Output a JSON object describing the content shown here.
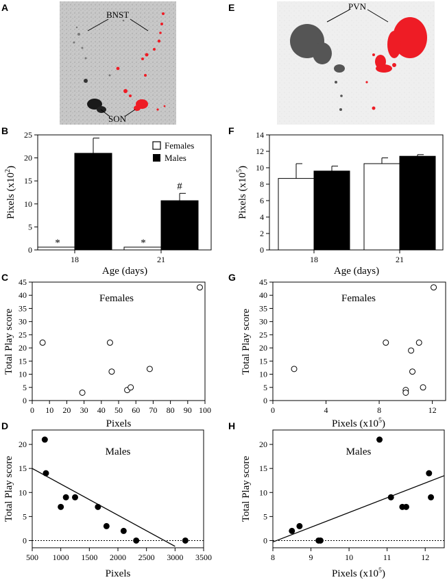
{
  "colors": {
    "highlight": "#ee1c25",
    "stain": "#555555",
    "background_panel": "#c4c4c4"
  },
  "panel_labels": [
    "A",
    "B",
    "C",
    "D",
    "E",
    "F",
    "G",
    "H"
  ],
  "images": [
    {
      "panel": "A",
      "labels": [
        "BNST",
        "SON"
      ]
    },
    {
      "panel": "E",
      "labels": [
        "PVN"
      ]
    }
  ],
  "chart_data": [
    {
      "panel": "B",
      "type": "bar",
      "categories": [
        "18",
        "21"
      ],
      "series": [
        {
          "name": "Females",
          "values": [
            0.6,
            0.6
          ],
          "errors": [
            0,
            0
          ]
        },
        {
          "name": "Males",
          "values": [
            21,
            10.7
          ],
          "errors": [
            3.3,
            1.6
          ]
        }
      ],
      "xlabel": "Age (days)",
      "ylabel": "Pixels (x10",
      "ylabel_sup": "2",
      "ylabel_end": ")",
      "ylim": [
        0,
        25
      ],
      "yticks": [
        "0",
        "5",
        "10",
        "15",
        "20",
        "25"
      ],
      "annotations": [
        "*",
        "*",
        "#"
      ],
      "legend": "top-right"
    },
    {
      "panel": "F",
      "type": "bar",
      "categories": [
        "18",
        "21"
      ],
      "series": [
        {
          "name": "Females",
          "values": [
            8.7,
            10.5
          ],
          "errors": [
            1.8,
            0.7
          ]
        },
        {
          "name": "Males",
          "values": [
            9.6,
            11.4
          ],
          "errors": [
            0.6,
            0.2
          ]
        }
      ],
      "xlabel": "Age (days)",
      "ylabel": "Pixels (x10",
      "ylabel_sup": "5",
      "ylabel_end": ")",
      "ylim": [
        0,
        14
      ],
      "yticks": [
        "0",
        "2",
        "4",
        "6",
        "8",
        "10",
        "12",
        "14"
      ]
    },
    {
      "panel": "C",
      "type": "scatter",
      "title": "Females",
      "marker": "open",
      "x": [
        6,
        29,
        45,
        46,
        55,
        57,
        68,
        97
      ],
      "y": [
        22,
        3,
        22,
        11,
        4,
        5,
        12,
        43
      ],
      "xlabel": "Pixels",
      "ylabel": "Total Play score",
      "xlim": [
        0,
        100
      ],
      "ylim": [
        0,
        45
      ],
      "xticks": [
        "0",
        "10",
        "20",
        "30",
        "40",
        "50",
        "60",
        "70",
        "80",
        "90",
        "100"
      ],
      "yticks": [
        "0",
        "5",
        "10",
        "15",
        "20",
        "25",
        "30",
        "35",
        "40",
        "45"
      ]
    },
    {
      "panel": "G",
      "type": "scatter",
      "title": "Females",
      "marker": "open",
      "x": [
        1.6,
        8.5,
        10,
        10,
        10.4,
        10.5,
        11,
        11.3,
        12.1
      ],
      "y": [
        12,
        22,
        4,
        3,
        19,
        11,
        22,
        5,
        43
      ],
      "xlabel": "Pixels (x10",
      "xlabel_sup": "5",
      "xlabel_end": ")",
      "ylabel": "Total Play score",
      "xlim": [
        0,
        13
      ],
      "ylim": [
        0,
        45
      ],
      "xticks": [
        "0",
        "4",
        "8",
        "12"
      ],
      "yticks": [
        "0",
        "5",
        "10",
        "15",
        "20",
        "25",
        "30",
        "35",
        "40",
        "45"
      ]
    },
    {
      "panel": "D",
      "type": "scatter",
      "title": "Males",
      "marker": "filled",
      "x": [
        720,
        740,
        1000,
        1090,
        1250,
        1650,
        1800,
        2100,
        2320,
        3180
      ],
      "y": [
        21,
        14,
        7,
        9,
        9,
        7,
        3,
        2,
        0,
        0
      ],
      "fit": [
        [
          500,
          15
        ],
        [
          3000,
          -1.2
        ]
      ],
      "xlabel": "Pixels",
      "ylabel": "Total Play score",
      "xlim": [
        500,
        3500
      ],
      "ylim": [
        -1.5,
        23
      ],
      "xticks": [
        "500",
        "1000",
        "1500",
        "2000",
        "2500",
        "3000",
        "3500"
      ],
      "yticks": [
        "0",
        "5",
        "10",
        "15",
        "20"
      ]
    },
    {
      "panel": "H",
      "type": "scatter",
      "title": "Males",
      "marker": "filled",
      "x": [
        8.5,
        8.7,
        9.2,
        9.25,
        10.8,
        11.1,
        11.4,
        11.5,
        12.1,
        12.15
      ],
      "y": [
        2,
        3,
        0,
        0,
        21,
        9,
        7,
        7,
        14,
        9
      ],
      "fit": [
        [
          8,
          -0.3
        ],
        [
          12.5,
          13.5
        ]
      ],
      "xlabel": "Pixels (x10",
      "xlabel_sup": "5",
      "xlabel_end": ")",
      "ylabel": "Total Play score",
      "xlim": [
        8,
        12.5
      ],
      "ylim": [
        -1.5,
        23
      ],
      "xticks": [
        "8",
        "9",
        "10",
        "11",
        "12"
      ],
      "yticks": [
        "0",
        "5",
        "10",
        "15",
        "20"
      ]
    }
  ]
}
